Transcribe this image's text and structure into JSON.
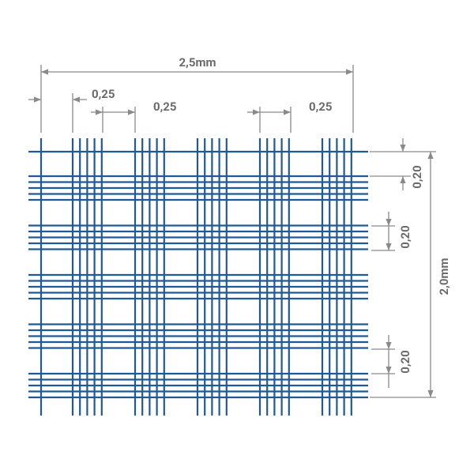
{
  "dimensions": {
    "total_width": "2,5mm",
    "total_height": "2,0mm",
    "column_spacings": [
      "0,25",
      "0,25",
      "0,25"
    ],
    "row_spacings": [
      "0,20",
      "0,20",
      "0,20"
    ]
  }
}
